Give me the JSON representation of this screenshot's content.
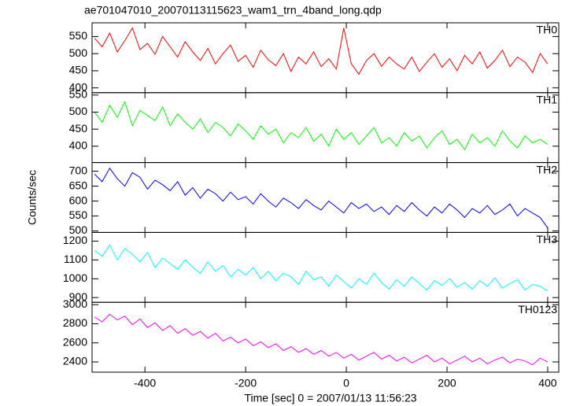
{
  "title": "ae701047010_20070113115623_wam1_trn_4band_long.qdp",
  "xlabel": "Time [sec] 0 = 2007/01/13 11:56:23",
  "ylabel": "Counts/sec",
  "chart_data": [
    {
      "type": "line",
      "x": [
        -500,
        -485,
        -470,
        -455,
        -440,
        -425,
        -410,
        -395,
        -380,
        -365,
        -350,
        -335,
        -320,
        -305,
        -290,
        -275,
        -260,
        -245,
        -230,
        -215,
        -200,
        -185,
        -170,
        -155,
        -140,
        -125,
        -110,
        -95,
        -80,
        -65,
        -50,
        -35,
        -20,
        -5,
        10,
        25,
        40,
        55,
        70,
        85,
        100,
        115,
        130,
        145,
        160,
        175,
        190,
        205,
        220,
        235,
        250,
        265,
        280,
        295,
        310,
        325,
        340,
        355,
        370,
        385,
        400
      ],
      "series": [
        {
          "name": "TH0",
          "color": "#ff0000",
          "values": [
            545,
            520,
            560,
            505,
            538,
            575,
            512,
            530,
            498,
            550,
            520,
            490,
            535,
            505,
            480,
            515,
            470,
            500,
            525,
            478,
            495,
            460,
            510,
            482,
            465,
            500,
            448,
            490,
            470,
            505,
            462,
            485,
            455,
            575,
            470,
            440,
            480,
            500,
            463,
            490,
            470,
            455,
            490,
            448,
            475,
            500,
            460,
            485,
            450,
            495,
            470,
            505,
            458,
            480,
            510,
            462,
            490,
            475,
            445,
            500,
            470
          ]
        }
      ],
      "xlim": [
        -505,
        422
      ],
      "ylim": [
        386,
        590
      ],
      "xticks": [
        -400,
        -200,
        0,
        200,
        400
      ],
      "yticks": [
        400,
        450,
        500,
        550
      ]
    },
    {
      "type": "line",
      "x": [
        -500,
        -485,
        -470,
        -455,
        -440,
        -425,
        -410,
        -395,
        -380,
        -365,
        -350,
        -335,
        -320,
        -305,
        -290,
        -275,
        -260,
        -245,
        -230,
        -215,
        -200,
        -185,
        -170,
        -155,
        -140,
        -125,
        -110,
        -95,
        -80,
        -65,
        -50,
        -35,
        -20,
        -5,
        10,
        25,
        40,
        55,
        70,
        85,
        100,
        115,
        130,
        145,
        160,
        175,
        190,
        205,
        220,
        235,
        250,
        265,
        280,
        295,
        310,
        325,
        340,
        355,
        370,
        385,
        400
      ],
      "series": [
        {
          "name": "TH1",
          "color": "#00ff00",
          "values": [
            500,
            470,
            520,
            485,
            530,
            460,
            505,
            490,
            475,
            515,
            460,
            495,
            470,
            450,
            480,
            440,
            470,
            455,
            430,
            465,
            445,
            420,
            460,
            435,
            450,
            410,
            440,
            425,
            455,
            415,
            435,
            400,
            450,
            420,
            440,
            405,
            430,
            455,
            410,
            425,
            400,
            440,
            415,
            430,
            395,
            425,
            445,
            405,
            420,
            390,
            435,
            410,
            425,
            400,
            445,
            415,
            395,
            430,
            410,
            420,
            405
          ]
        }
      ],
      "xlim": [
        -505,
        422
      ],
      "ylim": [
        352,
        557
      ],
      "xticks": [
        -400,
        -200,
        0,
        200,
        400
      ],
      "yticks": [
        400,
        450,
        500,
        550
      ]
    },
    {
      "type": "line",
      "x": [
        -500,
        -485,
        -470,
        -455,
        -440,
        -425,
        -410,
        -395,
        -380,
        -365,
        -350,
        -335,
        -320,
        -305,
        -290,
        -275,
        -260,
        -245,
        -230,
        -215,
        -200,
        -185,
        -170,
        -155,
        -140,
        -125,
        -110,
        -95,
        -80,
        -65,
        -50,
        -35,
        -20,
        -5,
        10,
        25,
        40,
        55,
        70,
        85,
        100,
        115,
        130,
        145,
        160,
        175,
        190,
        205,
        220,
        235,
        250,
        265,
        280,
        295,
        310,
        325,
        340,
        355,
        370,
        385,
        400
      ],
      "series": [
        {
          "name": "TH2",
          "color": "#0000ff",
          "values": [
            690,
            665,
            710,
            675,
            650,
            695,
            680,
            640,
            670,
            655,
            635,
            665,
            620,
            645,
            610,
            640,
            625,
            600,
            630,
            605,
            615,
            590,
            625,
            600,
            580,
            610,
            595,
            575,
            605,
            585,
            570,
            600,
            580,
            560,
            595,
            575,
            590,
            565,
            580,
            555,
            585,
            565,
            595,
            570,
            550,
            580,
            560,
            590,
            570,
            545,
            575,
            560,
            585,
            555,
            570,
            590,
            550,
            575,
            560,
            545,
            510
          ]
        }
      ],
      "xlim": [
        -505,
        422
      ],
      "ylim": [
        495,
        729
      ],
      "xticks": [
        -400,
        -200,
        0,
        200,
        400
      ],
      "yticks": [
        500,
        550,
        600,
        650,
        700
      ]
    },
    {
      "type": "line",
      "x": [
        -500,
        -485,
        -470,
        -455,
        -440,
        -425,
        -410,
        -395,
        -380,
        -365,
        -350,
        -335,
        -320,
        -305,
        -290,
        -275,
        -260,
        -245,
        -230,
        -215,
        -200,
        -185,
        -170,
        -155,
        -140,
        -125,
        -110,
        -95,
        -80,
        -65,
        -50,
        -35,
        -20,
        -5,
        10,
        25,
        40,
        55,
        70,
        85,
        100,
        115,
        130,
        145,
        160,
        175,
        190,
        205,
        220,
        235,
        250,
        265,
        280,
        295,
        310,
        325,
        340,
        355,
        370,
        385,
        400
      ],
      "series": [
        {
          "name": "TH3",
          "color": "#00ffff",
          "values": [
            1150,
            1120,
            1180,
            1100,
            1160,
            1130,
            1090,
            1140,
            1060,
            1110,
            1080,
            1050,
            1100,
            1060,
            1030,
            1090,
            1040,
            1070,
            1010,
            1050,
            1020,
            1060,
            1000,
            1040,
            990,
            1030,
            1010,
            970,
            1040,
            995,
            1010,
            960,
            1020,
            985,
            950,
            1000,
            970,
            1030,
            980,
            945,
            995,
            960,
            1010,
            975,
            940,
            990,
            965,
            1000,
            955,
            980,
            945,
            990,
            960,
            1005,
            950,
            975,
            995,
            940,
            970,
            960,
            935
          ]
        }
      ],
      "xlim": [
        -505,
        422
      ],
      "ylim": [
        875,
        1246
      ],
      "xticks": [
        -400,
        -200,
        0,
        200,
        400
      ],
      "yticks": [
        900,
        1000,
        1100,
        1200
      ]
    },
    {
      "type": "line",
      "x": [
        -500,
        -485,
        -470,
        -455,
        -440,
        -425,
        -410,
        -395,
        -380,
        -365,
        -350,
        -335,
        -320,
        -305,
        -290,
        -275,
        -260,
        -245,
        -230,
        -215,
        -200,
        -185,
        -170,
        -155,
        -140,
        -125,
        -110,
        -95,
        -80,
        -65,
        -50,
        -35,
        -20,
        -5,
        10,
        25,
        40,
        55,
        70,
        85,
        100,
        115,
        130,
        145,
        160,
        175,
        190,
        205,
        220,
        235,
        250,
        265,
        280,
        295,
        310,
        325,
        340,
        355,
        370,
        385,
        400
      ],
      "series": [
        {
          "name": "TH0123",
          "color": "#ff00ff",
          "values": [
            2870,
            2820,
            2900,
            2840,
            2880,
            2790,
            2850,
            2760,
            2810,
            2730,
            2780,
            2700,
            2750,
            2680,
            2720,
            2650,
            2700,
            2620,
            2660,
            2600,
            2640,
            2570,
            2610,
            2550,
            2590,
            2520,
            2560,
            2500,
            2540,
            2480,
            2520,
            2460,
            2500,
            2440,
            2480,
            2420,
            2460,
            2500,
            2430,
            2470,
            2410,
            2450,
            2390,
            2430,
            2470,
            2400,
            2440,
            2380,
            2420,
            2460,
            2400,
            2440,
            2380,
            2420,
            2450,
            2390,
            2430,
            2410,
            2370,
            2440,
            2400
          ]
        }
      ],
      "xlim": [
        -505,
        422
      ],
      "ylim": [
        2293,
        3025
      ],
      "xticks": [
        -400,
        -200,
        0,
        200,
        400
      ],
      "yticks": [
        2400,
        2600,
        2800,
        3000
      ]
    }
  ]
}
